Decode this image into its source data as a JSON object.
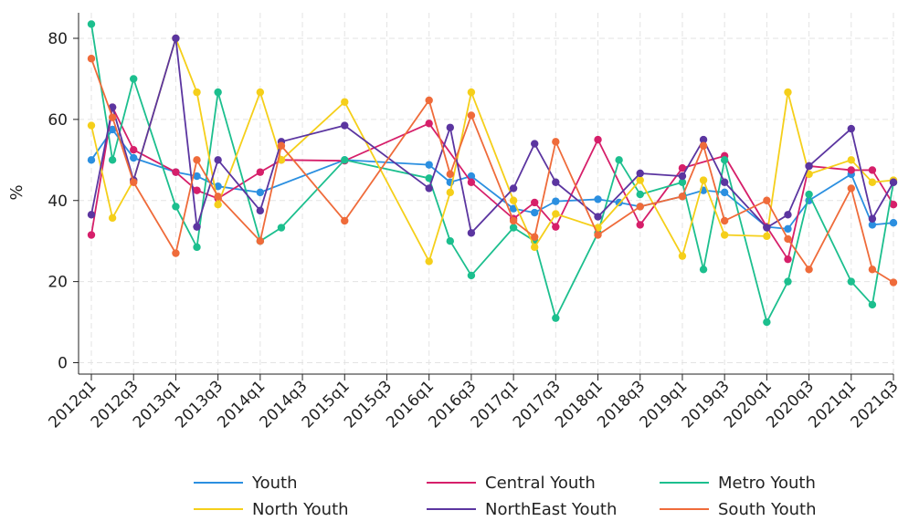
{
  "chart_data": {
    "type": "line",
    "title": "",
    "xlabel": "",
    "ylabel": "%",
    "ylim": [
      0,
      80
    ],
    "yticks": [
      0,
      20,
      40,
      60,
      80
    ],
    "grid": true,
    "legend_position": "bottom",
    "x": [
      "2012q1",
      "2012q2",
      "2012q3",
      "2012q4",
      "2013q1",
      "2013q2",
      "2013q3",
      "2013q4",
      "2014q1",
      "2014q2",
      "2014q3",
      "2014q4",
      "2015q1",
      "2015q2",
      "2015q3",
      "2015q4",
      "2016q1",
      "2016q2",
      "2016q3",
      "2016q4",
      "2017q1",
      "2017q2",
      "2017q3",
      "2017q4",
      "2018q1",
      "2018q2",
      "2018q3",
      "2018q4",
      "2019q1",
      "2019q2",
      "2019q3",
      "2019q4",
      "2020q1",
      "2020q2",
      "2020q3",
      "2020q4",
      "2021q1",
      "2021q2",
      "2021q3"
    ],
    "xticks": [
      "2012q1",
      "2012q3",
      "2013q1",
      "2013q3",
      "2014q1",
      "2014q3",
      "2015q1",
      "2015q3",
      "2016q1",
      "2016q3",
      "2017q1",
      "2017q3",
      "2018q1",
      "2018q3",
      "2019q1",
      "2019q3",
      "2020q1",
      "2020q3",
      "2021q1",
      "2021q3"
    ],
    "series": [
      {
        "name": "Youth",
        "color": "#2b8fe0",
        "values": [
          50,
          57.5,
          50.5,
          null,
          47,
          46,
          43.5,
          null,
          42,
          null,
          null,
          null,
          50,
          null,
          null,
          null,
          48.8,
          44.5,
          46,
          null,
          38,
          37,
          39.8,
          null,
          40.3,
          39.5,
          38.5,
          null,
          41,
          42.5,
          42,
          null,
          33.5,
          33,
          40,
          null,
          46.5,
          34,
          34.5
        ]
      },
      {
        "name": "Central Youth",
        "color": "#d61f6a",
        "values": [
          31.5,
          63,
          52.5,
          null,
          47,
          42.5,
          40.5,
          null,
          47,
          50,
          null,
          null,
          49.8,
          null,
          null,
          null,
          59,
          null,
          44.5,
          null,
          35.5,
          39.5,
          33.5,
          null,
          55,
          null,
          34,
          null,
          48,
          null,
          51,
          null,
          33.5,
          25.5,
          48.5,
          null,
          47.5,
          47.5,
          39
        ]
      },
      {
        "name": "Metro Youth",
        "color": "#1cbf8e",
        "values": [
          83.5,
          50,
          70,
          null,
          38.5,
          28.5,
          66.7,
          null,
          30,
          33.3,
          null,
          null,
          50,
          null,
          null,
          null,
          45.5,
          30,
          21.5,
          null,
          33.3,
          30,
          11,
          null,
          32,
          50,
          41.5,
          null,
          44.5,
          23,
          50,
          null,
          10,
          20,
          41.5,
          null,
          20,
          14.3,
          44.5
        ]
      },
      {
        "name": "North Youth",
        "color": "#f5cf1a",
        "values": [
          58.5,
          35.7,
          45,
          null,
          80,
          66.7,
          39,
          null,
          66.7,
          50,
          null,
          null,
          64.3,
          null,
          null,
          null,
          25,
          42,
          66.7,
          null,
          40,
          28.5,
          36.7,
          null,
          33.3,
          null,
          45,
          null,
          26.3,
          45,
          31.5,
          null,
          31.2,
          66.7,
          46.5,
          null,
          50,
          44.5,
          45
        ]
      },
      {
        "name": "NorthEast Youth",
        "color": "#5b35a0",
        "values": [
          36.5,
          63,
          45,
          null,
          80,
          33.5,
          50,
          null,
          37.5,
          54.5,
          null,
          null,
          58.5,
          null,
          null,
          null,
          43,
          58,
          32,
          null,
          43,
          54,
          44.5,
          null,
          36,
          null,
          46.7,
          null,
          46,
          55,
          44.5,
          null,
          33.3,
          36.5,
          48.5,
          null,
          57.7,
          35.5,
          44.5
        ]
      },
      {
        "name": "South Youth",
        "color": "#ef6b3a",
        "values": [
          75,
          60.5,
          44.5,
          null,
          27,
          50,
          41,
          null,
          30,
          53.5,
          null,
          null,
          35,
          null,
          null,
          null,
          64.7,
          46.5,
          61,
          null,
          35,
          31,
          54.5,
          null,
          31.5,
          null,
          38.5,
          null,
          41,
          53.5,
          35,
          null,
          40,
          30.5,
          23,
          null,
          43,
          23,
          19.8
        ]
      }
    ]
  }
}
